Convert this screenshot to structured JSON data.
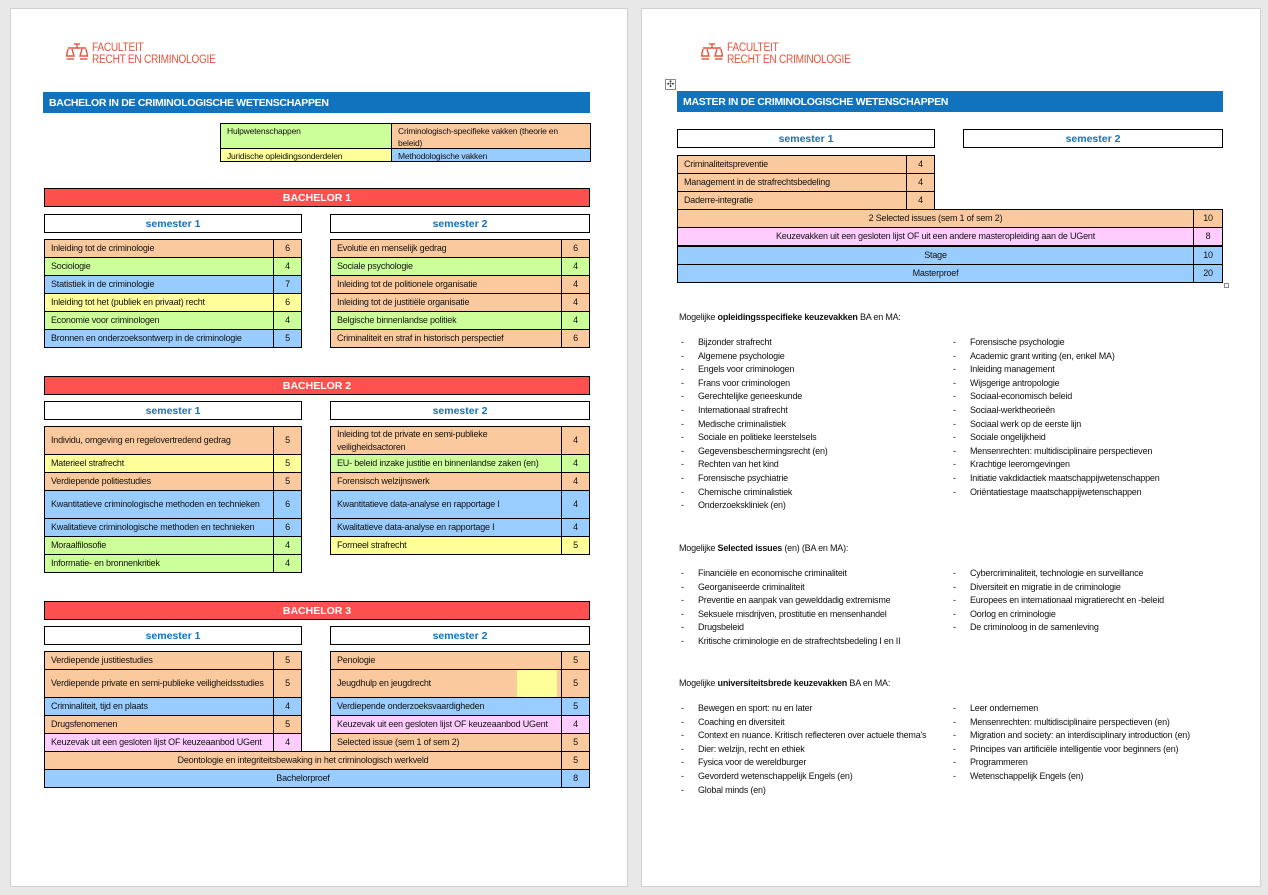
{
  "logo": {
    "line1": "FACULTEIT",
    "line2": "RECHT EN CRIMINOLOGIE",
    "color": "#e2553c",
    "icon": "scales-of-justice-icon"
  },
  "colors": {
    "banner": "#1172be",
    "year_bar": "#ff5050",
    "aux": "#ccff99",
    "crim": "#fbc99e",
    "legal": "#ffff99",
    "method": "#99ccff",
    "elective": "#ffccff"
  },
  "bachelor": {
    "title": "BACHELOR IN DE CRIMINOLOGISCHE WETENSCHAPPEN",
    "legend": [
      {
        "label": "Hulpwetenschappen",
        "category": "aux"
      },
      {
        "label": "Criminologisch-specifieke vakken (theorie en beleid)",
        "category": "crim"
      },
      {
        "label": "Juridische opleidingsonderdelen",
        "category": "legal"
      },
      {
        "label": "Methodologische vakken",
        "category": "method"
      }
    ],
    "years": [
      {
        "title": "BACHELOR 1",
        "semester1_label": "semester 1",
        "semester2_label": "semester 2",
        "semester1": [
          {
            "name": "Inleiding tot de criminologie",
            "ects": "6",
            "category": "crim"
          },
          {
            "name": "Sociologie",
            "ects": "4",
            "category": "aux"
          },
          {
            "name": "Statistiek in de criminologie",
            "ects": "7",
            "category": "method"
          },
          {
            "name": "Inleiding tot het (publiek en privaat) recht",
            "ects": "6",
            "category": "legal"
          },
          {
            "name": "Economie voor criminologen",
            "ects": "4",
            "category": "aux"
          },
          {
            "name": "Bronnen en onderzoeksontwerp in de criminologie",
            "ects": "5",
            "category": "method"
          }
        ],
        "semester2": [
          {
            "name": "Evolutie en menselijk gedrag",
            "ects": "6",
            "category": "crim"
          },
          {
            "name": "Sociale psychologie",
            "ects": "4",
            "category": "aux"
          },
          {
            "name": "Inleiding tot de politionele organisatie",
            "ects": "4",
            "category": "crim"
          },
          {
            "name": "Inleiding tot de justitiële organisatie",
            "ects": "4",
            "category": "crim"
          },
          {
            "name": "Belgische binnenlandse politiek",
            "ects": "4",
            "category": "aux"
          },
          {
            "name": "Criminaliteit en straf in historisch perspectief",
            "ects": "6",
            "category": "crim"
          }
        ],
        "full_rows": []
      },
      {
        "title": "BACHELOR 2",
        "semester1_label": "semester 1",
        "semester2_label": "semester 2",
        "semester1": [
          {
            "name": "Individu, omgeving en regelovertredend gedrag",
            "ects": "5",
            "category": "crim"
          },
          {
            "name": "Materieel strafrecht",
            "ects": "5",
            "category": "legal"
          },
          {
            "name": "Verdiepende politiestudies",
            "ects": "5",
            "category": "crim"
          },
          {
            "name": "Kwantitatieve criminologische methoden en technieken",
            "ects": "6",
            "category": "method"
          },
          {
            "name": "Kwalitatieve criminologische methoden en technieken",
            "ects": "6",
            "category": "method"
          },
          {
            "name": "Moraalfilosofie",
            "ects": "4",
            "category": "aux"
          },
          {
            "name": "Informatie- en bronnenkritiek",
            "ects": "4",
            "category": "aux"
          }
        ],
        "semester2": [
          {
            "name": "Inleiding tot de private en semi-publieke veiligheidsactoren",
            "ects": "4",
            "category": "crim"
          },
          {
            "name": "EU- beleid inzake justitie en binnenlandse zaken (en)",
            "ects": "4",
            "category": "aux"
          },
          {
            "name": "Forensisch welzijnswerk",
            "ects": "4",
            "category": "crim"
          },
          {
            "name": "Kwantitatieve data-analyse en rapportage I",
            "ects": "4",
            "category": "method"
          },
          {
            "name": "Kwalitatieve data-analyse en rapportage I",
            "ects": "4",
            "category": "method"
          },
          {
            "name": "Formeel strafrecht",
            "ects": "5",
            "category": "legal"
          }
        ],
        "full_rows": []
      },
      {
        "title": "BACHELOR 3",
        "semester1_label": "semester 1",
        "semester2_label": "semester 2",
        "semester1": [
          {
            "name": "Verdiepende justitiestudies",
            "ects": "5",
            "category": "crim"
          },
          {
            "name": "Verdiepende private en semi-publieke veiligheidsstudies",
            "ects": "5",
            "category": "crim"
          },
          {
            "name": "Criminaliteit, tijd en plaats",
            "ects": "4",
            "category": "method"
          },
          {
            "name": "Drugsfenomenen",
            "ects": "5",
            "category": "crim"
          },
          {
            "name": "Keuzevak uit een gesloten lijst OF keuzeaanbod UGent",
            "ects": "4",
            "category": "elective"
          }
        ],
        "semester2": [
          {
            "name": "Penologie",
            "ects": "5",
            "category": "crim"
          },
          {
            "name": "Jeugdhulp en jeugdrecht",
            "ects": "5",
            "category": "crim",
            "accent": "legal"
          },
          {
            "name": "Verdiepende onderzoeksvaardigheden",
            "ects": "5",
            "category": "method"
          },
          {
            "name": "Keuzevak uit een gesloten lijst OF keuzeaanbod UGent",
            "ects": "4",
            "category": "elective"
          },
          {
            "name": "Selected issue (sem 1 of sem 2)",
            "ects": "5",
            "category": "crim"
          }
        ],
        "full_rows": [
          {
            "name": "Deontologie en integriteitsbewaking in het criminologisch werkveld",
            "ects": "5",
            "category": "crim"
          },
          {
            "name": "Bachelorproef",
            "ects": "8",
            "category": "method"
          }
        ]
      }
    ]
  },
  "master": {
    "title": "MASTER IN DE CRIMINOLOGISCHE WETENSCHAPPEN",
    "semester1_label": "semester 1",
    "semester2_label": "semester 2",
    "semester1": [
      {
        "name": "Criminaliteitspreventie",
        "ects": "4",
        "category": "crim"
      },
      {
        "name": "Management in de strafrechtsbedeling",
        "ects": "4",
        "category": "crim"
      },
      {
        "name": "Daderre-integratie",
        "ects": "4",
        "category": "crim"
      }
    ],
    "full_rows": [
      {
        "name": "2 Selected issues (sem 1 of sem 2)",
        "ects": "10",
        "category": "crim"
      },
      {
        "name": "Keuzevakken uit een gesloten lijst OF uit een andere masteropleiding aan de UGent",
        "ects": "8",
        "category": "elective"
      },
      {
        "name": "Stage",
        "ects": "10",
        "category": "method"
      },
      {
        "name": "Masterproef",
        "ects": "20",
        "category": "method"
      }
    ]
  },
  "sections": [
    {
      "prefix": "Mogelijke ",
      "bold": "opleidingsspecifieke keuzevakken",
      "suffix": " BA en MA:",
      "col1": [
        "Bijzonder strafrecht",
        "Algemene psychologie",
        "Engels voor criminologen",
        "Frans voor criminologen",
        "Gerechtelijke geneeskunde",
        "Internationaal strafrecht",
        "Medische criminalistiek",
        "Sociale en politieke leerstelsels",
        "Gegevensbeschermingsrecht (en)",
        "Rechten van het kind",
        "Forensische psychiatrie",
        "Chemische criminalistiek",
        "Onderzoekskliniek (en)"
      ],
      "col2": [
        "Forensische psychologie",
        "Academic grant writing (en, enkel MA)",
        "Inleiding management",
        "Wijsgerige antropologie",
        "Sociaal-economisch beleid",
        "Sociaal-werktheorieën",
        "Sociaal werk op de eerste lijn",
        "Sociale ongelijkheid",
        "Mensenrechten: multidisciplinaire perspectieven",
        "Krachtige leeromgevingen",
        "Initiatie vakdidactiek maatschappijwetenschappen",
        "Oriëntatiestage maatschappijwetenschappen"
      ]
    },
    {
      "prefix": "Mogelijke ",
      "bold": "Selected issues",
      "suffix": " (en) (BA en MA):",
      "col1": [
        "Financiële en economische criminaliteit",
        "Georganiseerde criminaliteit",
        "Preventie en aanpak van gewelddadig extremisme",
        "Seksuele misdrijven, prostitutie en mensenhandel",
        "Drugsbeleid",
        "Kritische criminologie en de strafrechtsbedeling I en II"
      ],
      "col2": [
        "Cybercriminaliteit, technologie en surveillance",
        "Diversiteit en migratie in de criminologie",
        "Europees en internationaal migratierecht en -beleid",
        "Oorlog en criminologie",
        "De criminoloog in de samenleving"
      ]
    },
    {
      "prefix": "Mogelijke ",
      "bold": "universiteitsbrede keuzevakken",
      "suffix": " BA en MA:",
      "col1": [
        "Bewegen en sport: nu en later",
        "Coaching en diversiteit",
        "Context en nuance. Kritisch reflecteren over actuele thema's",
        "Dier: welzijn, recht en ethiek",
        "Fysica voor de wereldburger",
        "Gevorderd wetenschappelijk Engels (en)",
        "Global minds (en)"
      ],
      "col2": [
        "Leer ondernemen",
        "Mensenrechten: multidisciplinaire perspectieven (en)",
        "Migration and society: an interdisciplinary introduction (en)",
        "Principes van artificiële intelligentie voor beginners (en)",
        "Programmeren",
        "Wetenschappelijk Engels (en)"
      ]
    }
  ],
  "list_bullet": "-"
}
